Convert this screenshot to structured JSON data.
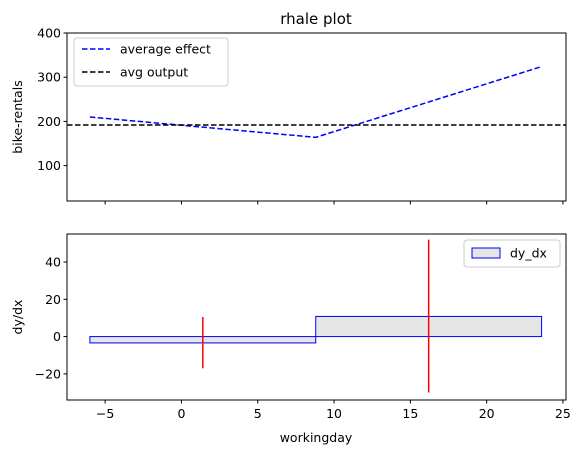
{
  "chart_data": [
    {
      "type": "line",
      "title": "rhale plot",
      "xlabel": "",
      "ylabel": "bike-rentals",
      "xlim": [
        -7.5,
        25.2
      ],
      "ylim": [
        20,
        400
      ],
      "yticks": [
        100,
        200,
        300,
        400
      ],
      "xticks": [
        -5,
        0,
        5,
        10,
        15,
        20,
        25
      ],
      "x_tick_labels_shown": false,
      "legend_position": "top-left",
      "series": [
        {
          "name": "average effect",
          "x": [
            -6,
            8.8,
            23.6
          ],
          "y": [
            210,
            164,
            324
          ],
          "color": "#0000ff",
          "style": "dashed"
        }
      ],
      "hlines": [
        {
          "name": "avg output",
          "y": 192,
          "color": "#000000",
          "style": "dashed"
        }
      ]
    },
    {
      "type": "bar",
      "title": "",
      "xlabel": "workingday",
      "ylabel": "dy/dx",
      "xlim": [
        -7.5,
        25.2
      ],
      "ylim": [
        -34,
        55
      ],
      "yticks": [
        -20,
        0,
        20,
        40
      ],
      "xticks": [
        -5,
        0,
        5,
        10,
        15,
        20,
        25
      ],
      "legend_position": "top-right",
      "bins": [
        {
          "x0": -6,
          "x1": 8.8,
          "value": -3.4
        },
        {
          "x0": 8.8,
          "x1": 23.6,
          "value": 10.8
        }
      ],
      "bar_series_name": "dy_dx",
      "bar_fill": "#e6e6e6",
      "bar_edge": "#0000ff",
      "error_bars": [
        {
          "x": 1.4,
          "low": -17,
          "high": 10.5
        },
        {
          "x": 16.2,
          "low": -30,
          "high": 52
        }
      ],
      "error_color": "#ff0000"
    }
  ]
}
